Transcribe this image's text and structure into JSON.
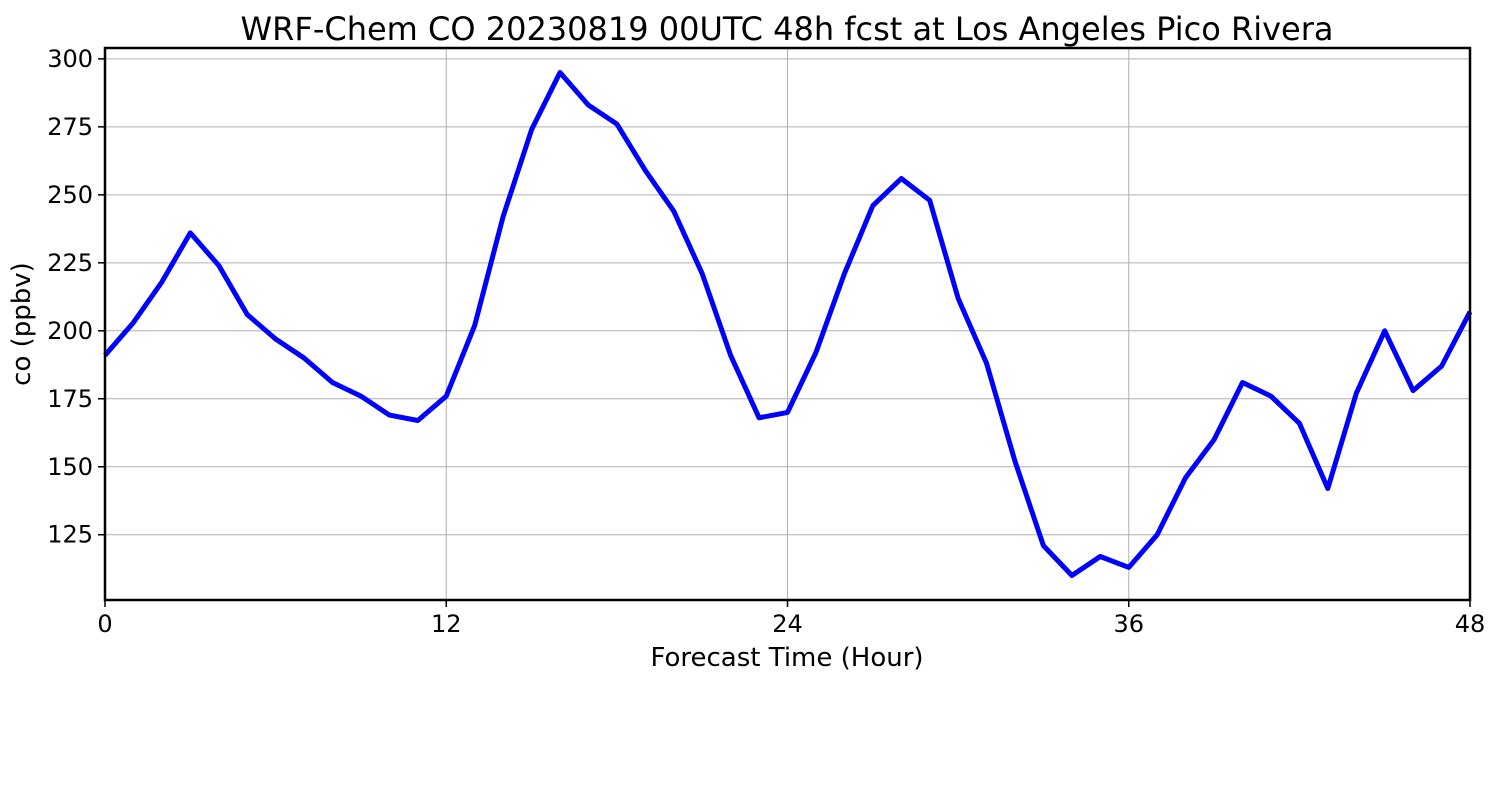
{
  "chart_data": {
    "type": "line",
    "title": "WRF-Chem CO  20230819 00UTC 48h fcst at Los Angeles Pico Rivera",
    "xlabel": "Forecast Time (Hour)",
    "ylabel": "co  (ppbv)",
    "xlim": [
      0,
      48
    ],
    "ylim": [
      101,
      304
    ],
    "xticks": [
      0,
      12,
      24,
      36,
      48
    ],
    "yticks": [
      125,
      150,
      175,
      200,
      225,
      250,
      275,
      300
    ],
    "grid": true,
    "line_color": "#0000ff",
    "series": [
      {
        "x": [
          0,
          1,
          2,
          3,
          4,
          5,
          6,
          7,
          8,
          9,
          10,
          11,
          12,
          13,
          14,
          15,
          16,
          17,
          18,
          19,
          20,
          21,
          22,
          23,
          24,
          25,
          26,
          27,
          28,
          29,
          30,
          31,
          32,
          33,
          34,
          35,
          36,
          37,
          38,
          39,
          40,
          41,
          42,
          43,
          44,
          45,
          46,
          47,
          48
        ],
        "values": [
          191,
          203,
          218,
          236,
          224,
          206,
          197,
          190,
          181,
          176,
          169,
          167,
          176,
          202,
          242,
          274,
          295,
          283,
          276,
          259,
          244,
          221,
          191,
          168,
          170,
          192,
          221,
          246,
          256,
          248,
          212,
          188,
          152,
          121,
          110,
          117,
          113,
          125,
          146,
          160,
          181,
          176,
          166,
          142,
          177,
          200,
          178,
          187,
          207
        ]
      }
    ]
  }
}
